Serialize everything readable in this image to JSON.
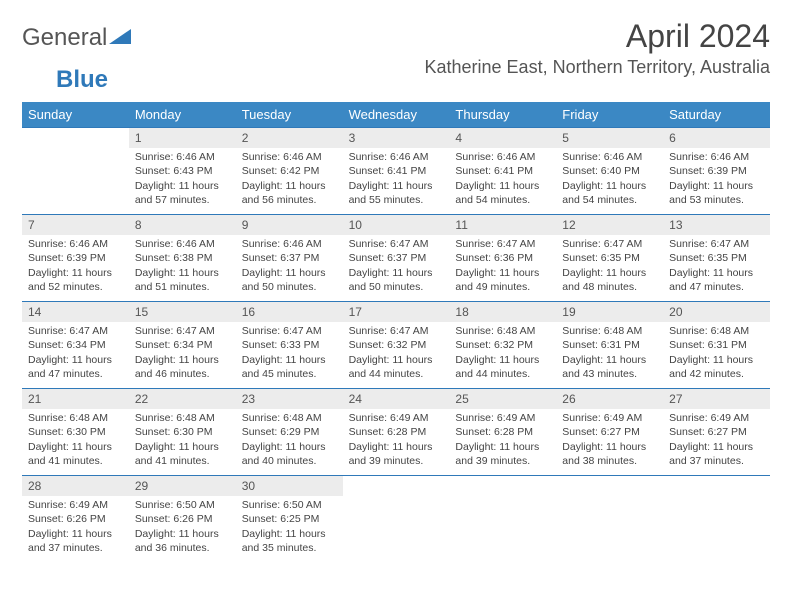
{
  "brand": {
    "part1": "General",
    "part2": "Blue"
  },
  "title": "April 2024",
  "location": "Katherine East, Northern Territory, Australia",
  "colors": {
    "header_bg": "#3b88c4",
    "header_text": "#ffffff",
    "divider": "#2f79b9",
    "daynum_bg": "#ececec",
    "text": "#444444",
    "brand_blue": "#2f79b9"
  },
  "typography": {
    "title_fontsize": 32,
    "location_fontsize": 18,
    "dow_fontsize": 13,
    "cell_fontsize": 10.5
  },
  "days_of_week": [
    "Sunday",
    "Monday",
    "Tuesday",
    "Wednesday",
    "Thursday",
    "Friday",
    "Saturday"
  ],
  "weeks": [
    [
      {
        "n": "",
        "sunrise": "",
        "sunset": "",
        "daylight": ""
      },
      {
        "n": "1",
        "sunrise": "Sunrise: 6:46 AM",
        "sunset": "Sunset: 6:43 PM",
        "daylight": "Daylight: 11 hours and 57 minutes."
      },
      {
        "n": "2",
        "sunrise": "Sunrise: 6:46 AM",
        "sunset": "Sunset: 6:42 PM",
        "daylight": "Daylight: 11 hours and 56 minutes."
      },
      {
        "n": "3",
        "sunrise": "Sunrise: 6:46 AM",
        "sunset": "Sunset: 6:41 PM",
        "daylight": "Daylight: 11 hours and 55 minutes."
      },
      {
        "n": "4",
        "sunrise": "Sunrise: 6:46 AM",
        "sunset": "Sunset: 6:41 PM",
        "daylight": "Daylight: 11 hours and 54 minutes."
      },
      {
        "n": "5",
        "sunrise": "Sunrise: 6:46 AM",
        "sunset": "Sunset: 6:40 PM",
        "daylight": "Daylight: 11 hours and 54 minutes."
      },
      {
        "n": "6",
        "sunrise": "Sunrise: 6:46 AM",
        "sunset": "Sunset: 6:39 PM",
        "daylight": "Daylight: 11 hours and 53 minutes."
      }
    ],
    [
      {
        "n": "7",
        "sunrise": "Sunrise: 6:46 AM",
        "sunset": "Sunset: 6:39 PM",
        "daylight": "Daylight: 11 hours and 52 minutes."
      },
      {
        "n": "8",
        "sunrise": "Sunrise: 6:46 AM",
        "sunset": "Sunset: 6:38 PM",
        "daylight": "Daylight: 11 hours and 51 minutes."
      },
      {
        "n": "9",
        "sunrise": "Sunrise: 6:46 AM",
        "sunset": "Sunset: 6:37 PM",
        "daylight": "Daylight: 11 hours and 50 minutes."
      },
      {
        "n": "10",
        "sunrise": "Sunrise: 6:47 AM",
        "sunset": "Sunset: 6:37 PM",
        "daylight": "Daylight: 11 hours and 50 minutes."
      },
      {
        "n": "11",
        "sunrise": "Sunrise: 6:47 AM",
        "sunset": "Sunset: 6:36 PM",
        "daylight": "Daylight: 11 hours and 49 minutes."
      },
      {
        "n": "12",
        "sunrise": "Sunrise: 6:47 AM",
        "sunset": "Sunset: 6:35 PM",
        "daylight": "Daylight: 11 hours and 48 minutes."
      },
      {
        "n": "13",
        "sunrise": "Sunrise: 6:47 AM",
        "sunset": "Sunset: 6:35 PM",
        "daylight": "Daylight: 11 hours and 47 minutes."
      }
    ],
    [
      {
        "n": "14",
        "sunrise": "Sunrise: 6:47 AM",
        "sunset": "Sunset: 6:34 PM",
        "daylight": "Daylight: 11 hours and 47 minutes."
      },
      {
        "n": "15",
        "sunrise": "Sunrise: 6:47 AM",
        "sunset": "Sunset: 6:34 PM",
        "daylight": "Daylight: 11 hours and 46 minutes."
      },
      {
        "n": "16",
        "sunrise": "Sunrise: 6:47 AM",
        "sunset": "Sunset: 6:33 PM",
        "daylight": "Daylight: 11 hours and 45 minutes."
      },
      {
        "n": "17",
        "sunrise": "Sunrise: 6:47 AM",
        "sunset": "Sunset: 6:32 PM",
        "daylight": "Daylight: 11 hours and 44 minutes."
      },
      {
        "n": "18",
        "sunrise": "Sunrise: 6:48 AM",
        "sunset": "Sunset: 6:32 PM",
        "daylight": "Daylight: 11 hours and 44 minutes."
      },
      {
        "n": "19",
        "sunrise": "Sunrise: 6:48 AM",
        "sunset": "Sunset: 6:31 PM",
        "daylight": "Daylight: 11 hours and 43 minutes."
      },
      {
        "n": "20",
        "sunrise": "Sunrise: 6:48 AM",
        "sunset": "Sunset: 6:31 PM",
        "daylight": "Daylight: 11 hours and 42 minutes."
      }
    ],
    [
      {
        "n": "21",
        "sunrise": "Sunrise: 6:48 AM",
        "sunset": "Sunset: 6:30 PM",
        "daylight": "Daylight: 11 hours and 41 minutes."
      },
      {
        "n": "22",
        "sunrise": "Sunrise: 6:48 AM",
        "sunset": "Sunset: 6:30 PM",
        "daylight": "Daylight: 11 hours and 41 minutes."
      },
      {
        "n": "23",
        "sunrise": "Sunrise: 6:48 AM",
        "sunset": "Sunset: 6:29 PM",
        "daylight": "Daylight: 11 hours and 40 minutes."
      },
      {
        "n": "24",
        "sunrise": "Sunrise: 6:49 AM",
        "sunset": "Sunset: 6:28 PM",
        "daylight": "Daylight: 11 hours and 39 minutes."
      },
      {
        "n": "25",
        "sunrise": "Sunrise: 6:49 AM",
        "sunset": "Sunset: 6:28 PM",
        "daylight": "Daylight: 11 hours and 39 minutes."
      },
      {
        "n": "26",
        "sunrise": "Sunrise: 6:49 AM",
        "sunset": "Sunset: 6:27 PM",
        "daylight": "Daylight: 11 hours and 38 minutes."
      },
      {
        "n": "27",
        "sunrise": "Sunrise: 6:49 AM",
        "sunset": "Sunset: 6:27 PM",
        "daylight": "Daylight: 11 hours and 37 minutes."
      }
    ],
    [
      {
        "n": "28",
        "sunrise": "Sunrise: 6:49 AM",
        "sunset": "Sunset: 6:26 PM",
        "daylight": "Daylight: 11 hours and 37 minutes."
      },
      {
        "n": "29",
        "sunrise": "Sunrise: 6:50 AM",
        "sunset": "Sunset: 6:26 PM",
        "daylight": "Daylight: 11 hours and 36 minutes."
      },
      {
        "n": "30",
        "sunrise": "Sunrise: 6:50 AM",
        "sunset": "Sunset: 6:25 PM",
        "daylight": "Daylight: 11 hours and 35 minutes."
      },
      {
        "n": "",
        "sunrise": "",
        "sunset": "",
        "daylight": ""
      },
      {
        "n": "",
        "sunrise": "",
        "sunset": "",
        "daylight": ""
      },
      {
        "n": "",
        "sunrise": "",
        "sunset": "",
        "daylight": ""
      },
      {
        "n": "",
        "sunrise": "",
        "sunset": "",
        "daylight": ""
      }
    ]
  ]
}
